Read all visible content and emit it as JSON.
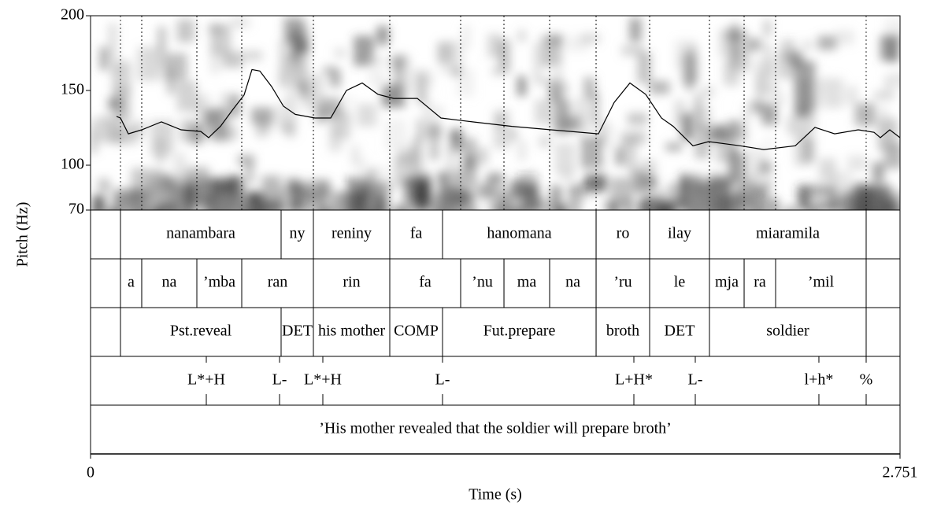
{
  "chart_data": {
    "type": "pitch",
    "x_label": "Time (s)",
    "y_label": "Pitch (Hz)",
    "xlim": [
      0,
      2.751
    ],
    "xticks": [
      0,
      2.751
    ],
    "ylim": [
      70,
      200
    ],
    "yticks": [
      70,
      100,
      150,
      200
    ],
    "color": "#000000",
    "x": [
      0.0883,
      0.1017,
      0.1285,
      0.1739,
      0.2408,
      0.3077,
      0.3746,
      0.4014,
      0.4148,
      0.4415,
      0.4817,
      0.5218,
      0.5486,
      0.5753,
      0.6155,
      0.6556,
      0.6958,
      0.7627,
      0.8162,
      0.8697,
      0.9233,
      0.9768,
      1.0303,
      1.1106,
      1.1909,
      1.2979,
      1.4317,
      1.5655,
      1.7261,
      1.7796,
      1.8331,
      1.8866,
      1.9401,
      1.9803,
      2.0472,
      2.1007,
      2.2077,
      2.288,
      2.3951,
      2.462,
      2.5288,
      2.6091,
      2.6627,
      2.6841,
      2.7162,
      2.7509
    ],
    "values": [
      132.6,
      131.6,
      121,
      123.7,
      129,
      123.7,
      122.6,
      118.4,
      121,
      126,
      136.8,
      147,
      164,
      163,
      152.6,
      139.5,
      134,
      131.6,
      131.6,
      150,
      155,
      147.4,
      144.7,
      144.7,
      131.6,
      129,
      126,
      123.7,
      121,
      142,
      155,
      147.4,
      131.6,
      126,
      113,
      115.8,
      113,
      110.5,
      113,
      125.3,
      121,
      123.7,
      122,
      118.4,
      123.7,
      118.4
    ],
    "tiers": [
      {
        "intervals": [
          {
            "start": 0.1017,
            "end": 0.6476,
            "label": "nanambara"
          },
          {
            "start": 0.6476,
            "end": 0.7573,
            "label": "ny"
          },
          {
            "start": 0.7573,
            "end": 1.0169,
            "label": "reniny"
          },
          {
            "start": 1.0169,
            "end": 1.1962,
            "label": "fa"
          },
          {
            "start": 1.1962,
            "end": 1.7181,
            "label": "hanomana"
          },
          {
            "start": 1.7181,
            "end": 1.9,
            "label": "ro"
          },
          {
            "start": 1.9,
            "end": 2.1034,
            "label": "ilay"
          },
          {
            "start": 2.1034,
            "end": 2.6359,
            "label": "miaramila"
          }
        ]
      },
      {
        "intervals": [
          {
            "start": 0.1017,
            "end": 0.1739,
            "label": "a"
          },
          {
            "start": 0.1739,
            "end": 0.3613,
            "label": "na"
          },
          {
            "start": 0.3613,
            "end": 0.5138,
            "label": "’mba"
          },
          {
            "start": 0.5138,
            "end": 0.7573,
            "label": "ran"
          },
          {
            "start": 0.7573,
            "end": 1.0169,
            "label": "rin"
          },
          {
            "start": 1.0169,
            "end": 1.2578,
            "label": "fa"
          },
          {
            "start": 1.2578,
            "end": 1.405,
            "label": "’nu"
          },
          {
            "start": 1.405,
            "end": 1.5602,
            "label": "ma"
          },
          {
            "start": 1.5602,
            "end": 1.7181,
            "label": "na"
          },
          {
            "start": 1.7181,
            "end": 1.9,
            "label": "’ru"
          },
          {
            "start": 1.9,
            "end": 2.1034,
            "label": "le"
          },
          {
            "start": 2.1034,
            "end": 2.2212,
            "label": "mja"
          },
          {
            "start": 2.2212,
            "end": 2.3282,
            "label": "ra"
          },
          {
            "start": 2.3282,
            "end": 2.6359,
            "label": "’mil"
          }
        ]
      },
      {
        "intervals": [
          {
            "start": 0.1017,
            "end": 0.6476,
            "label": "Pst.reveal"
          },
          {
            "start": 0.6476,
            "end": 0.7573,
            "label": "DET"
          },
          {
            "start": 0.7573,
            "end": 1.0169,
            "label": "his mother"
          },
          {
            "start": 1.0169,
            "end": 1.1962,
            "label": "COMP"
          },
          {
            "start": 1.1962,
            "end": 1.7181,
            "label": "Fut.prepare"
          },
          {
            "start": 1.7181,
            "end": 1.9,
            "label": "broth"
          },
          {
            "start": 1.9,
            "end": 2.1034,
            "label": "DET"
          },
          {
            "start": 2.1034,
            "end": 2.6359,
            "label": "soldier"
          }
        ]
      },
      {
        "points": [
          {
            "time": 0.3934,
            "label": "L*+H"
          },
          {
            "time": 0.6423,
            "label": "L-"
          },
          {
            "time": 0.7894,
            "label": "L*+H"
          },
          {
            "time": 1.1962,
            "label": "L-"
          },
          {
            "time": 1.8465,
            "label": "L+H*"
          },
          {
            "time": 2.0552,
            "label": "L-"
          },
          {
            "time": 2.4753,
            "label": "l+h*"
          },
          {
            "time": 2.6359,
            "label": "%"
          }
        ]
      },
      {
        "intervals": [
          {
            "start": 0,
            "end": 2.751,
            "label": "’His mother revealed that the soldier will prepare broth’"
          }
        ]
      }
    ]
  }
}
